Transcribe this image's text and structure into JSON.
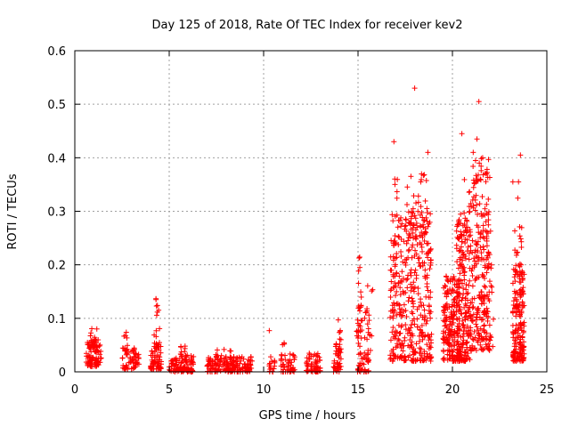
{
  "chart_data": {
    "type": "scatter",
    "title": "Day 125 of 2018, Rate Of TEC Index for receiver kev2",
    "xlabel": "GPS time / hours",
    "ylabel": "ROTI / TECUs",
    "xlim": [
      0,
      25
    ],
    "ylim": [
      0,
      0.6
    ],
    "x_ticks": [
      "0",
      "5",
      "10",
      "15",
      "20",
      "25"
    ],
    "y_ticks": [
      "0",
      "0.1",
      "0.2",
      "0.3",
      "0.4",
      "0.5",
      "0.6"
    ],
    "grid": true,
    "marker": "+",
    "color": "#ff0000",
    "clusters": [
      {
        "x": [
          0.6,
          1.4
        ],
        "y": [
          0.01,
          0.06
        ],
        "n": 90
      },
      {
        "x": [
          0.7,
          1.2
        ],
        "y": [
          0.04,
          0.085
        ],
        "n": 20
      },
      {
        "x": [
          2.5,
          3.4
        ],
        "y": [
          0.005,
          0.045
        ],
        "n": 60
      },
      {
        "x": [
          2.6,
          2.8
        ],
        "y": [
          0.04,
          0.075
        ],
        "n": 8
      },
      {
        "x": [
          4.0,
          4.6
        ],
        "y": [
          0.005,
          0.05
        ],
        "n": 60
      },
      {
        "x": [
          4.2,
          4.5
        ],
        "y": [
          0.05,
          0.14
        ],
        "n": 18
      },
      {
        "x": [
          5.0,
          6.3
        ],
        "y": [
          0.0,
          0.03
        ],
        "n": 110
      },
      {
        "x": [
          5.6,
          6.0
        ],
        "y": [
          0.03,
          0.05
        ],
        "n": 10
      },
      {
        "x": [
          7.0,
          9.4
        ],
        "y": [
          0.0,
          0.03
        ],
        "n": 180
      },
      {
        "x": [
          7.4,
          8.3
        ],
        "y": [
          0.025,
          0.045
        ],
        "n": 12
      },
      {
        "x": [
          10.3,
          10.6
        ],
        "y": [
          0.0,
          0.03
        ],
        "n": 16
      },
      {
        "x": [
          10.9,
          11.7
        ],
        "y": [
          0.0,
          0.035
        ],
        "n": 50
      },
      {
        "x": [
          11.0,
          11.2
        ],
        "y": [
          0.05,
          0.06
        ],
        "n": 3
      },
      {
        "x": [
          12.2,
          13.0
        ],
        "y": [
          0.0,
          0.035
        ],
        "n": 60
      },
      {
        "x": [
          13.7,
          14.1
        ],
        "y": [
          0.0,
          0.06
        ],
        "n": 45
      },
      {
        "x": [
          13.9,
          14.1
        ],
        "y": [
          0.06,
          0.14
        ],
        "n": 6
      },
      {
        "x": [
          14.9,
          15.6
        ],
        "y": [
          0.0,
          0.12
        ],
        "n": 70
      },
      {
        "x": [
          15.0,
          15.2
        ],
        "y": [
          0.12,
          0.22
        ],
        "n": 12
      },
      {
        "x": [
          15.5,
          15.8
        ],
        "y": [
          0.04,
          0.19
        ],
        "n": 10
      },
      {
        "x": [
          16.7,
          18.9
        ],
        "y": [
          0.02,
          0.3
        ],
        "n": 380
      },
      {
        "x": [
          16.9,
          18.7
        ],
        "y": [
          0.25,
          0.39
        ],
        "n": 50
      },
      {
        "x": [
          19.5,
          20.4
        ],
        "y": [
          0.02,
          0.18
        ],
        "n": 190
      },
      {
        "x": [
          20.2,
          21.0
        ],
        "y": [
          0.02,
          0.3
        ],
        "n": 190
      },
      {
        "x": [
          20.5,
          21.9
        ],
        "y": [
          0.1,
          0.37
        ],
        "n": 80
      },
      {
        "x": [
          21.0,
          22.0
        ],
        "y": [
          0.04,
          0.4
        ],
        "n": 150
      },
      {
        "x": [
          21.6,
          22.2
        ],
        "y": [
          0.04,
          0.33
        ],
        "n": 40
      },
      {
        "x": [
          23.2,
          23.8
        ],
        "y": [
          0.02,
          0.2
        ],
        "n": 180
      },
      {
        "x": [
          23.3,
          23.7
        ],
        "y": [
          0.18,
          0.33
        ],
        "n": 20
      }
    ],
    "outliers": [
      {
        "x": 18.0,
        "y": 0.53
      },
      {
        "x": 21.4,
        "y": 0.505
      },
      {
        "x": 20.5,
        "y": 0.445
      },
      {
        "x": 21.3,
        "y": 0.435
      },
      {
        "x": 16.9,
        "y": 0.43
      },
      {
        "x": 18.7,
        "y": 0.41
      },
      {
        "x": 23.6,
        "y": 0.405
      },
      {
        "x": 21.6,
        "y": 0.4
      },
      {
        "x": 21.8,
        "y": 0.37
      },
      {
        "x": 23.5,
        "y": 0.355
      },
      {
        "x": 23.2,
        "y": 0.355
      },
      {
        "x": 21.1,
        "y": 0.41
      },
      {
        "x": 10.3,
        "y": 0.077
      },
      {
        "x": 4.3,
        "y": 0.135
      }
    ]
  }
}
